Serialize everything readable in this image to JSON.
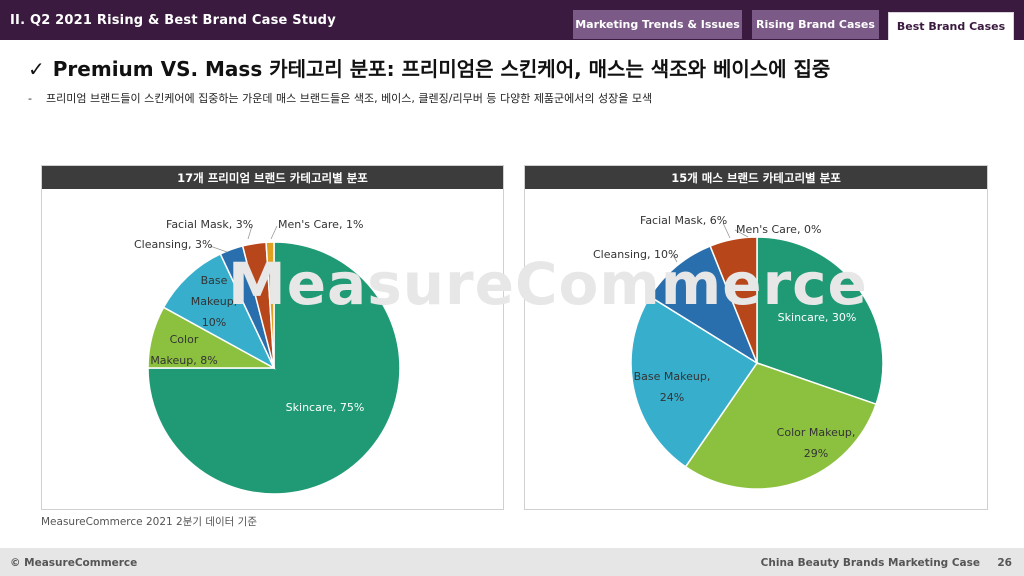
{
  "header": {
    "title": "II. Q2 2021 Rising & Best Brand Case Study",
    "tabs": [
      {
        "label": "Marketing Trends & Issues",
        "color": "#7b5a87"
      },
      {
        "label": "Rising Brand Cases",
        "color": "#7b5a87"
      },
      {
        "label": "Best Brand Cases",
        "color": "#ffffff"
      }
    ]
  },
  "headline": {
    "check": "✓",
    "text": "Premium VS. Mass 카테고리 분포: 프리미엄은 스킨케어, 매스는 색조와 베이스에 집중"
  },
  "subline": {
    "bullet": "-",
    "text": "프리미엄 브랜드들이 스킨케어에 집중하는 가운데 매스 브랜드들은 색조, 베이스, 클렌징/리무버 등 다양한 제품군에서의 성장을 모색"
  },
  "watermark": "MeasureCommerce",
  "chart_data": [
    {
      "type": "pie",
      "title": "17개 프리미엄 브랜드 카테고리별 분포",
      "slices": [
        {
          "label": "Skincare",
          "value": 75,
          "color": "#1f9a74"
        },
        {
          "label": "Color Makeup",
          "value": 8,
          "color": "#8cc13f"
        },
        {
          "label": "Base Makeup",
          "value": 10,
          "color": "#37aecc"
        },
        {
          "label": "Cleansing",
          "value": 3,
          "color": "#2a6fad"
        },
        {
          "label": "Facial Mask",
          "value": 3,
          "color": "#b8461b"
        },
        {
          "label": "Men's Care",
          "value": 1,
          "color": "#e0a020"
        }
      ],
      "labels": {
        "Skincare": [
          "Skincare, 75%"
        ],
        "Color Makeup": [
          "Color",
          "Makeup, 8%"
        ],
        "Base Makeup": [
          "Base",
          "Makeup,",
          "10%"
        ],
        "Cleansing": [
          "Cleansing, 3%"
        ],
        "Facial Mask": [
          "Facial Mask, 3%"
        ],
        "Men's Care": [
          "Men's Care, 1%"
        ]
      }
    },
    {
      "type": "pie",
      "title": "15개 매스 브랜드 카테고리별 분포",
      "slices": [
        {
          "label": "Skincare",
          "value": 30,
          "color": "#1f9a74"
        },
        {
          "label": "Color Makeup",
          "value": 29,
          "color": "#8cc13f"
        },
        {
          "label": "Base Makeup",
          "value": 24,
          "color": "#37aecc"
        },
        {
          "label": "Cleansing",
          "value": 10,
          "color": "#2a6fad"
        },
        {
          "label": "Facial Mask",
          "value": 6,
          "color": "#b8461b"
        },
        {
          "label": "Men's Care",
          "value": 0,
          "color": "#e0a020"
        }
      ],
      "labels": {
        "Skincare": [
          "Skincare, 30%"
        ],
        "Color Makeup": [
          "Color Makeup,",
          "29%"
        ],
        "Base Makeup": [
          "Base Makeup,",
          "24%"
        ],
        "Cleansing": [
          "Cleansing, 10%"
        ],
        "Facial Mask": [
          "Facial Mask, 6%"
        ],
        "Men's Care": [
          "Men's Care, 0%"
        ]
      }
    }
  ],
  "source": "MeasureCommerce 2021 2분기 데이터 기준",
  "footer": {
    "left": "© MeasureCommerce",
    "right": "China Beauty Brands Marketing Case",
    "page": "26"
  }
}
